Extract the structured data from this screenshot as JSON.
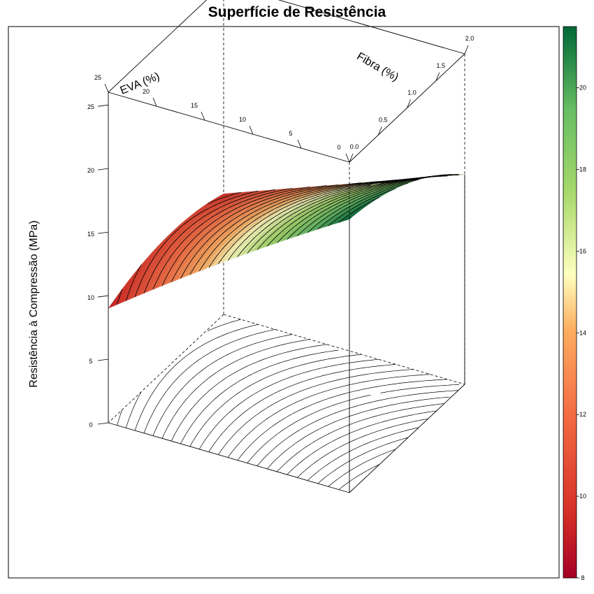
{
  "chart_data": {
    "type": "surface3d",
    "title": "Superfície de Resistência",
    "x_axis": {
      "label": "Fibra (%)",
      "range": [
        0,
        2
      ],
      "ticks": [
        "0.0",
        "0.5",
        "1.0",
        "1.5",
        "2.0"
      ]
    },
    "y_axis": {
      "label": "EVA (%)",
      "range": [
        0,
        25
      ],
      "ticks": [
        "0",
        "5",
        "10",
        "15",
        "20",
        "25"
      ]
    },
    "z_axis": {
      "label": "Resistência à Compressão (MPa)",
      "range": [
        0,
        26
      ],
      "ticks": [
        "0",
        "5",
        "10",
        "15",
        "20",
        "25"
      ]
    },
    "corner_values": {
      "fibra_0_eva_0": 21.5,
      "fibra_2_eva_0": 16.5,
      "fibra_0_eva_25": 9.0,
      "fibra_2_eva_25": 9.5
    },
    "colorbar": {
      "range": [
        8,
        21.5
      ],
      "ticks": [
        "8",
        "10",
        "12",
        "14",
        "16",
        "18",
        "20"
      ],
      "low_color": "#A50026",
      "mid_color": "#FFFFBF",
      "high_color": "#006837"
    },
    "contours_on_floor": true,
    "grid": false
  }
}
